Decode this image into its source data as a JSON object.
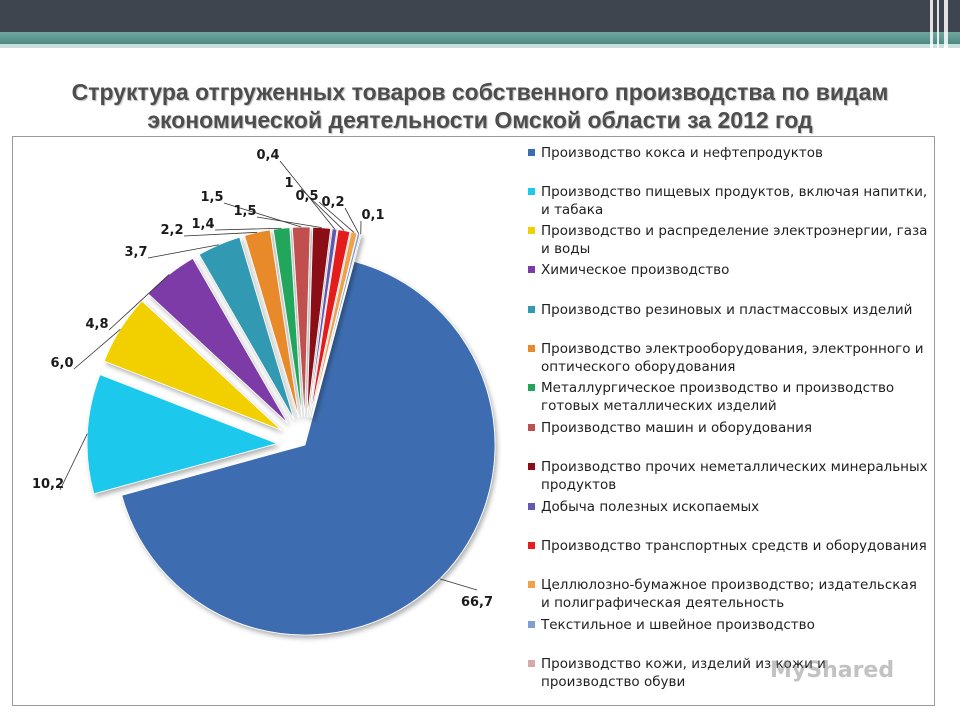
{
  "title_line1": "Структура отгруженных товаров собственного производства по видам",
  "title_line2": "экономической деятельности Омской области за 2012 год",
  "watermark": "MyShared",
  "chart_data": {
    "type": "pie",
    "exploded": true,
    "legend_position": "right",
    "slices": [
      {
        "label": "Производство кокса и нефтепродуктов",
        "value": 66.7,
        "value_label": "66,7",
        "color": "#3c6db0"
      },
      {
        "label": "Производство пищевых продуктов, включая напитки, и табака",
        "value": 10.2,
        "value_label": "10,2",
        "color": "#1fc9ec"
      },
      {
        "label": "Производство и распределение электроэнергии, газа и воды",
        "value": 6.0,
        "value_label": "6,0",
        "color": "#f2d000"
      },
      {
        "label": "Химическое производство",
        "value": 4.8,
        "value_label": "4,8",
        "color": "#7b3aa6"
      },
      {
        "label": "Производство резиновых и пластмассовых изделий",
        "value": 3.7,
        "value_label": "3,7",
        "color": "#3299b3"
      },
      {
        "label": "Производство электрооборудования, электронного и оптического оборудования",
        "value": 2.2,
        "value_label": "2,2",
        "color": "#e8892c"
      },
      {
        "label": "Металлургическое производство и производство готовых металлических изделий",
        "value": 1.4,
        "value_label": "1,4",
        "color": "#21a65b"
      },
      {
        "label": "Производство машин и оборудования",
        "value": 1.5,
        "value_label": "1,5",
        "color": "#c0504d"
      },
      {
        "label": "Производство прочих неметаллических минеральных продуктов",
        "value": 1.5,
        "value_label": "1,5",
        "color": "#8b0c12"
      },
      {
        "label": "Добыча полезных ископаемых",
        "value": 0.4,
        "value_label": "0,4",
        "color": "#6259b0"
      },
      {
        "label": "Производство транспортных средств и оборудования",
        "value": 1,
        "value_label": "1",
        "color": "#e51d1d"
      },
      {
        "label": "Целлюлозно-бумажное производство; издательская и полиграфическая деятельность",
        "value": 0.5,
        "value_label": "0,5",
        "color": "#f0a24a"
      },
      {
        "label": "Текстильное и швейное производство",
        "value": 0.2,
        "value_label": "0,2",
        "color": "#7f9fd0"
      },
      {
        "label": "Производство кожи, изделий из кожи и производство обуви",
        "value": 0.1,
        "value_label": "0,1",
        "color": "#d9a9a9"
      }
    ]
  }
}
